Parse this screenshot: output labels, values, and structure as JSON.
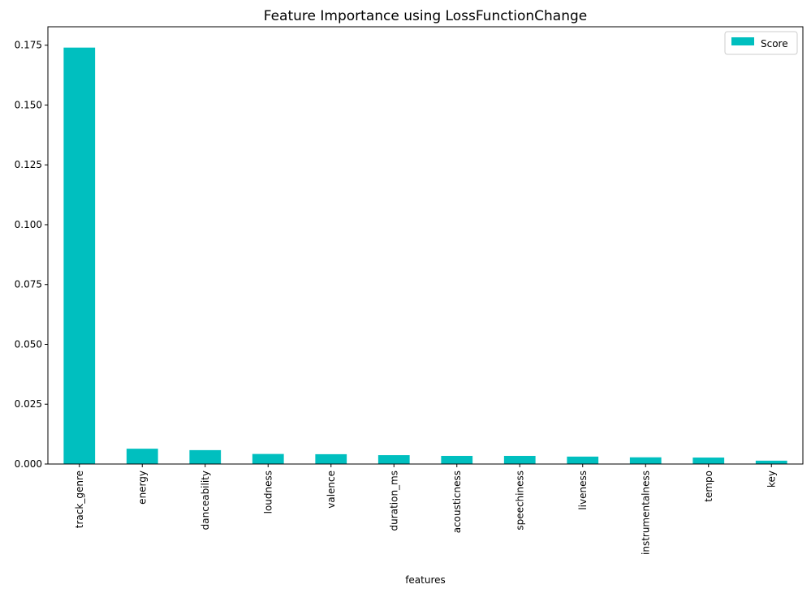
{
  "chart_data": {
    "type": "bar",
    "title": "Feature Importance using LossFunctionChange",
    "xlabel": "features",
    "ylabel": "",
    "categories": [
      "track_genre",
      "energy",
      "danceability",
      "loudness",
      "valence",
      "duration_ms",
      "acousticness",
      "speechiness",
      "liveness",
      "instrumentalness",
      "tempo",
      "key"
    ],
    "series": [
      {
        "name": "Score",
        "values": [
          0.174,
          0.0064,
          0.0058,
          0.0042,
          0.0041,
          0.0037,
          0.0034,
          0.0034,
          0.0031,
          0.0028,
          0.0027,
          0.0014
        ]
      }
    ],
    "ylim": [
      0,
      0.1827
    ],
    "yticks": [
      0.0,
      0.025,
      0.05,
      0.075,
      0.1,
      0.125,
      0.15,
      0.175
    ],
    "ytick_labels": [
      "0.000",
      "0.025",
      "0.050",
      "0.075",
      "0.100",
      "0.125",
      "0.150",
      "0.175"
    ],
    "legend_position": "top-right",
    "grid": false,
    "bar_color": "#00bfbf"
  }
}
